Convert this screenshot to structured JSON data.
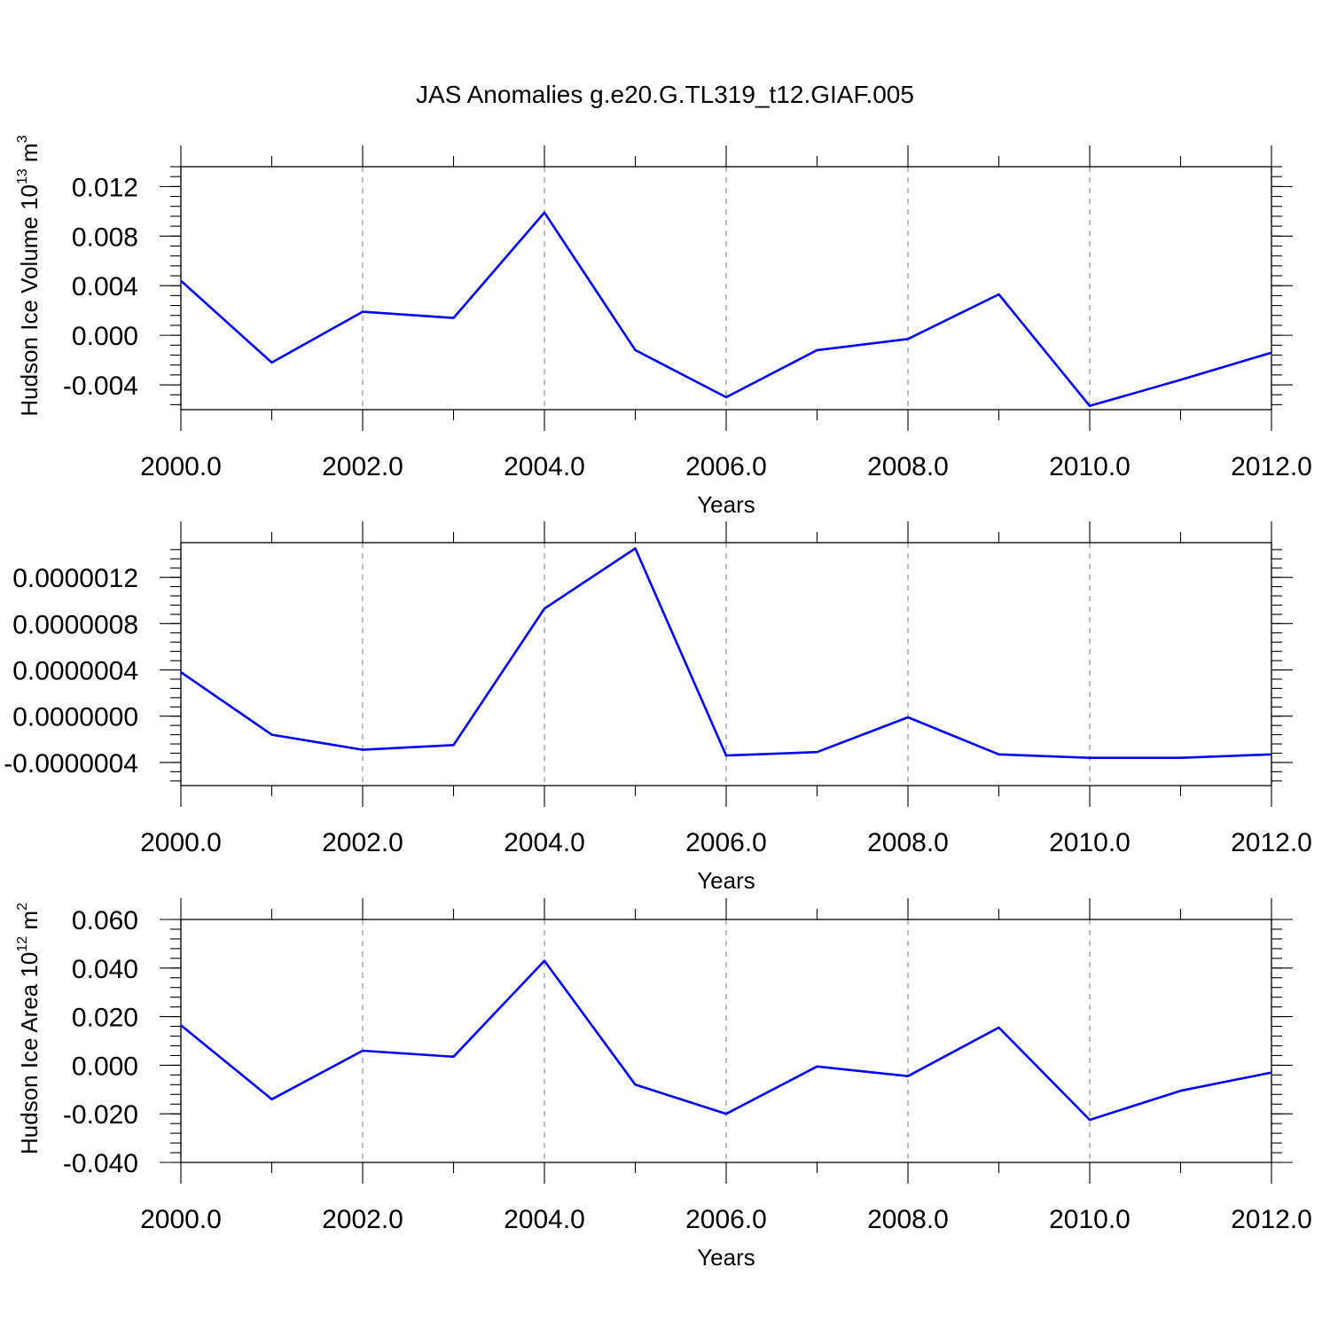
{
  "title": "JAS Anomalies g.e20.G.TL319_t12.GIAF.005",
  "colors": {
    "series": "#0000ff",
    "grid": "#999999"
  },
  "chart_data": [
    {
      "type": "line",
      "xlabel": "Years",
      "ylabel": "Hudson Ice Volume 10",
      "ylabel_sup_exp": "13",
      "ylabel_unit": " m",
      "ylabel_sup_unit": "3",
      "xlim": [
        2000,
        2012
      ],
      "ylim": [
        -0.006,
        0.0136
      ],
      "x_ticks": [
        2000,
        2002,
        2004,
        2006,
        2008,
        2010,
        2012
      ],
      "x_tick_labels": [
        "2000.0",
        "2002.0",
        "2004.0",
        "2006.0",
        "2008.0",
        "2010.0",
        "2012.0"
      ],
      "y_ticks": [
        -0.004,
        0.0,
        0.004,
        0.008,
        0.012
      ],
      "y_tick_labels": [
        "-0.004",
        "0.000",
        "0.004",
        "0.008",
        "0.012"
      ],
      "grid_x": true,
      "x": [
        2000,
        2001,
        2002,
        2003,
        2004,
        2005,
        2006,
        2007,
        2008,
        2009,
        2010,
        2011,
        2012
      ],
      "y": [
        0.0044,
        -0.0022,
        0.0019,
        0.0014,
        0.0099,
        -0.0012,
        -0.005,
        -0.0012,
        -0.0003,
        0.0033,
        -0.0057,
        -0.0036,
        -0.0014
      ]
    },
    {
      "type": "line",
      "xlabel": "Years",
      "ylabel": "",
      "xlim": [
        2000,
        2012
      ],
      "ylim": [
        -6e-07,
        1.5e-06
      ],
      "x_ticks": [
        2000,
        2002,
        2004,
        2006,
        2008,
        2010,
        2012
      ],
      "x_tick_labels": [
        "2000.0",
        "2002.0",
        "2004.0",
        "2006.0",
        "2008.0",
        "2010.0",
        "2012.0"
      ],
      "y_ticks": [
        -4e-07,
        0.0,
        4e-07,
        8e-07,
        1.2e-06
      ],
      "y_tick_labels": [
        "-0.0000004",
        "0.0000000",
        "0.0000004",
        "0.0000008",
        "0.0000012"
      ],
      "grid_x": true,
      "x": [
        2000,
        2001,
        2002,
        2003,
        2004,
        2005,
        2006,
        2007,
        2008,
        2009,
        2010,
        2011,
        2012
      ],
      "y": [
        3.8e-07,
        -1.6e-07,
        -2.9e-07,
        -2.5e-07,
        9.3e-07,
        1.45e-06,
        -3.4e-07,
        -3.1e-07,
        -1e-08,
        -3.3e-07,
        -3.6e-07,
        -3.6e-07,
        -3.3e-07
      ]
    },
    {
      "type": "line",
      "xlabel": "Years",
      "ylabel": "Hudson Ice Area 10",
      "ylabel_sup_exp": "12",
      "ylabel_unit": " m",
      "ylabel_sup_unit": "2",
      "xlim": [
        2000,
        2012
      ],
      "ylim": [
        -0.04,
        0.06
      ],
      "x_ticks": [
        2000,
        2002,
        2004,
        2006,
        2008,
        2010,
        2012
      ],
      "x_tick_labels": [
        "2000.0",
        "2002.0",
        "2004.0",
        "2006.0",
        "2008.0",
        "2010.0",
        "2012.0"
      ],
      "y_ticks": [
        -0.04,
        -0.02,
        0.0,
        0.02,
        0.04,
        0.06
      ],
      "y_tick_labels": [
        "-0.040",
        "-0.020",
        "0.000",
        "0.020",
        "0.040",
        "0.060"
      ],
      "grid_x": true,
      "x": [
        2000,
        2001,
        2002,
        2003,
        2004,
        2005,
        2006,
        2007,
        2008,
        2009,
        2010,
        2011,
        2012
      ],
      "y": [
        0.0165,
        -0.014,
        0.006,
        0.0035,
        0.043,
        -0.008,
        -0.02,
        -0.0005,
        -0.0045,
        0.0155,
        -0.0225,
        -0.0105,
        -0.003
      ]
    }
  ]
}
